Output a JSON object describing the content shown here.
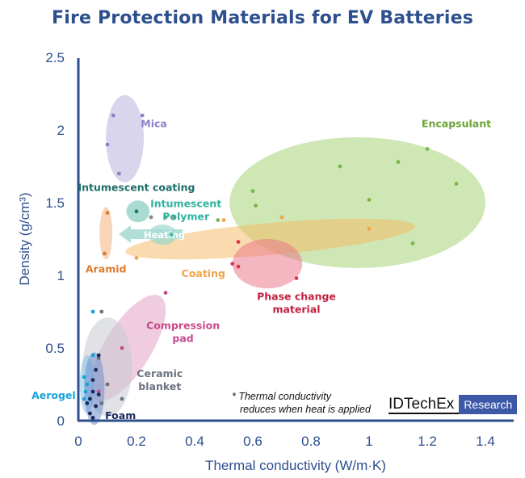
{
  "chart_data": {
    "type": "scatter",
    "title": "Fire Protection Materials for EV Batteries",
    "xlabel": "Thermal conductivity (W/m·K)",
    "ylabel": "Density (g/cm³)",
    "xlim": [
      0,
      1.5
    ],
    "ylim": [
      0,
      2.5
    ],
    "xticks": [
      "0",
      "0.2",
      "0.4",
      "0.6",
      "0.8",
      "1",
      "1.2",
      "1.4"
    ],
    "yticks": [
      "0",
      "0.5",
      "1",
      "1.5",
      "2",
      "2.5"
    ],
    "grid": false,
    "note_lines": [
      "* Thermal conductivity",
      "reduces when heat is applied"
    ],
    "heating_label": "Heating",
    "series": [
      {
        "name": "Encapsulant",
        "color": "#7ab648",
        "points": [
          [
            0.48,
            1.38
          ],
          [
            0.6,
            1.58
          ],
          [
            0.61,
            1.48
          ],
          [
            0.9,
            1.75
          ],
          [
            1.0,
            1.52
          ],
          [
            1.1,
            1.78
          ],
          [
            1.2,
            1.87
          ],
          [
            1.3,
            1.63
          ],
          [
            1.15,
            1.22
          ]
        ]
      },
      {
        "name": "Coating",
        "color": "#f0a34a",
        "points": [
          [
            0.2,
            1.12
          ],
          [
            0.32,
            1.28
          ],
          [
            0.5,
            1.38
          ],
          [
            0.7,
            1.4
          ],
          [
            1.0,
            1.32
          ]
        ]
      },
      {
        "name": "Phase change material",
        "color": "#e0334e",
        "points": [
          [
            0.55,
            1.23
          ],
          [
            0.53,
            1.08
          ],
          [
            0.55,
            1.06
          ],
          [
            0.75,
            0.98
          ]
        ]
      },
      {
        "name": "Mica",
        "color": "#8a82c7",
        "points": [
          [
            0.12,
            2.1
          ],
          [
            0.22,
            2.1
          ],
          [
            0.1,
            1.9
          ],
          [
            0.14,
            1.7
          ]
        ]
      },
      {
        "name": "Intumescent coating",
        "color": "#1d7a72",
        "points": [
          [
            0.2,
            1.44
          ]
        ]
      },
      {
        "name": "Intumescent Polymer",
        "color": "#3cb8a8",
        "points": [
          [
            0.32,
            1.28
          ]
        ]
      },
      {
        "name": "Aramid",
        "color": "#e07b2b",
        "points": [
          [
            0.1,
            1.43
          ],
          [
            0.09,
            1.15
          ]
        ]
      },
      {
        "name": "Compression pad",
        "color": "#c54b8c",
        "points": [
          [
            0.15,
            0.5
          ],
          [
            0.3,
            0.88
          ],
          [
            0.07,
            0.2
          ]
        ]
      },
      {
        "name": "Ceramic blanket",
        "color": "#6b7280",
        "points": [
          [
            0.07,
            0.43
          ],
          [
            0.08,
            0.75
          ],
          [
            0.1,
            0.25
          ],
          [
            0.15,
            0.15
          ],
          [
            0.08,
            0.12
          ]
        ]
      },
      {
        "name": "Aerogel",
        "color": "#1aa3d9",
        "points": [
          [
            0.02,
            0.15
          ],
          [
            0.025,
            0.2
          ],
          [
            0.03,
            0.25
          ],
          [
            0.02,
            0.3
          ],
          [
            0.05,
            0.75
          ],
          [
            0.05,
            0.45
          ]
        ]
      },
      {
        "name": "Foam",
        "color": "#1a2a5e",
        "points": [
          [
            0.04,
            0.15
          ],
          [
            0.05,
            0.2
          ],
          [
            0.06,
            0.1
          ],
          [
            0.04,
            0.05
          ],
          [
            0.05,
            0.28
          ],
          [
            0.07,
            0.18
          ],
          [
            0.06,
            0.35
          ],
          [
            0.05,
            0.02
          ],
          [
            0.03,
            0.12
          ],
          [
            0.07,
            0.45
          ]
        ]
      },
      {
        "name": "",
        "color": "#8a8a8a",
        "points": [
          [
            0.25,
            1.4
          ],
          [
            0.3,
            1.4
          ],
          [
            0.33,
            1.4
          ]
        ]
      }
    ],
    "regions": [
      {
        "name": "Encapsulant",
        "fill": "#9fcf6a",
        "opacity": 0.5,
        "cx": 0.96,
        "cy": 1.5,
        "rx": 0.44,
        "ry": 0.45,
        "rot": 0
      },
      {
        "name": "Coating",
        "fill": "#f5b860",
        "opacity": 0.5,
        "cx": 0.66,
        "cy": 1.25,
        "rx": 0.5,
        "ry": 0.11,
        "rot": -5
      },
      {
        "name": "Phase change material",
        "fill": "#ea6f85",
        "opacity": 0.5,
        "cx": 0.65,
        "cy": 1.08,
        "rx": 0.12,
        "ry": 0.17,
        "rot": 0
      },
      {
        "name": "Mica",
        "fill": "#b8b3df",
        "opacity": 0.55,
        "cx": 0.16,
        "cy": 1.94,
        "rx": 0.065,
        "ry": 0.3,
        "rot": 0
      },
      {
        "name": "Intumescent coating",
        "fill": "#6fc3b6",
        "opacity": 0.6,
        "cx": 0.205,
        "cy": 1.44,
        "rx": 0.04,
        "ry": 0.075,
        "rot": 0
      },
      {
        "name": "Intumescent Polymer",
        "fill": "#8ed5cc",
        "opacity": 0.6,
        "cx": 0.29,
        "cy": 1.28,
        "rx": 0.05,
        "ry": 0.07,
        "rot": 0
      },
      {
        "name": "Aramid",
        "fill": "#f3b07d",
        "opacity": 0.55,
        "cx": 0.095,
        "cy": 1.29,
        "rx": 0.022,
        "ry": 0.18,
        "rot": 0
      },
      {
        "name": "Compression pad",
        "fill": "#e4a3c7",
        "opacity": 0.55,
        "cx": 0.17,
        "cy": 0.5,
        "rx": 0.08,
        "ry": 0.42,
        "rot": 32
      },
      {
        "name": "Ceramic blanket",
        "fill": "#c7cad0",
        "opacity": 0.55,
        "cx": 0.1,
        "cy": 0.37,
        "rx": 0.085,
        "ry": 0.34,
        "rot": 0
      },
      {
        "name": "Aerogel",
        "fill": "#8cc7e6",
        "opacity": 0.6,
        "cx": 0.03,
        "cy": 0.25,
        "rx": 0.025,
        "ry": 0.2,
        "rot": 0
      },
      {
        "name": "Foam",
        "fill": "#6f8fcf",
        "opacity": 0.55,
        "cx": 0.055,
        "cy": 0.22,
        "rx": 0.035,
        "ry": 0.25,
        "rot": 0
      }
    ],
    "labels": [
      {
        "lines": [
          "Mica"
        ],
        "color": "#8a82c7",
        "x": 0.26,
        "y": 2.02
      },
      {
        "lines": [
          "Encapsulant"
        ],
        "color": "#6fa33a",
        "x": 1.3,
        "y": 2.02
      },
      {
        "lines": [
          "Intumescent coating"
        ],
        "color": "#1d6e68",
        "x": 0.2,
        "y": 1.58
      },
      {
        "lines": [
          "Intumescent",
          "Polymer"
        ],
        "color": "#2fb39e",
        "x": 0.37,
        "y": 1.47
      },
      {
        "lines": [
          "Aramid"
        ],
        "color": "#e07b2b",
        "x": 0.095,
        "y": 1.02
      },
      {
        "lines": [
          "Coating"
        ],
        "color": "#f0a34a",
        "x": 0.43,
        "y": 0.99
      },
      {
        "lines": [
          "Phase change",
          "material"
        ],
        "color": "#c3203e",
        "x": 0.75,
        "y": 0.83
      },
      {
        "lines": [
          "Compression",
          "pad"
        ],
        "color": "#c54b8c",
        "x": 0.36,
        "y": 0.63
      },
      {
        "lines": [
          "Ceramic",
          "blanket"
        ],
        "color": "#6b7280",
        "x": 0.28,
        "y": 0.3
      },
      {
        "lines": [
          "Aerogel"
        ],
        "color": "#1aa3d9",
        "x": -0.085,
        "y": 0.15
      },
      {
        "lines": [
          "Foam"
        ],
        "color": "#1a2a5e",
        "x": 0.145,
        "y": 0.01
      }
    ]
  },
  "logo": {
    "word": "IDTechEx",
    "tag": "Research"
  }
}
